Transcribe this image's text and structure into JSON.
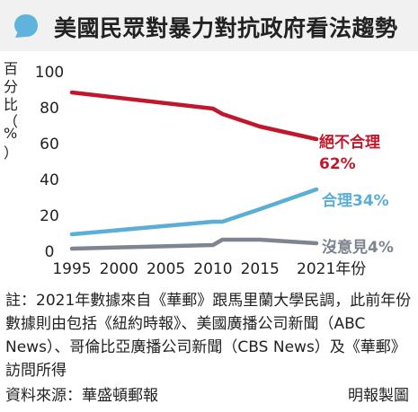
{
  "title": "美國民眾對暴力對抗政府看法趨勢",
  "chart_data": {
    "type": "line",
    "title": "美國民眾對暴力對抗政府看法趨勢",
    "ylabel": "百分比（%）",
    "xlabel": "年份",
    "ylim": [
      0,
      100
    ],
    "xlim": [
      1995,
      2021
    ],
    "x_ticks": [
      "1995",
      "2000",
      "2005",
      "2010",
      "2015",
      "2021年份"
    ],
    "y_ticks": [
      "0",
      "20",
      "40",
      "60",
      "80",
      "100"
    ],
    "grid": false,
    "series": [
      {
        "name": "絕不合理",
        "color": "#c0172d",
        "end_label": "62%",
        "points": [
          [
            1995,
            88
          ],
          [
            2010,
            79
          ],
          [
            2011,
            76
          ],
          [
            2015,
            69
          ],
          [
            2021,
            62
          ]
        ]
      },
      {
        "name": "合理",
        "color": "#5baed6",
        "end_label": "34%",
        "points": [
          [
            1995,
            9
          ],
          [
            2010,
            16
          ],
          [
            2011,
            16
          ],
          [
            2015,
            23
          ],
          [
            2021,
            34
          ]
        ]
      },
      {
        "name": "沒意見",
        "color": "#7d8590",
        "end_label": "4%",
        "points": [
          [
            1995,
            1
          ],
          [
            2010,
            3
          ],
          [
            2011,
            6
          ],
          [
            2015,
            6
          ],
          [
            2021,
            4
          ]
        ]
      }
    ]
  },
  "labels": {
    "s0_name": "絕不合理",
    "s0_value": "62%",
    "s1": "合理34%",
    "s2": "沒意見4%"
  },
  "ylabel_chars": [
    "百",
    "分",
    "比",
    "（",
    "%",
    "）"
  ],
  "note": "註：2021年數據來自《華郵》跟馬里蘭大學民調，此前年份數據則由包括《紐約時報》、美國廣播公司新聞（ABC News）、哥倫比亞廣播公司新聞（CBS News）及《華郵》訪問所得",
  "source": "資料來源：華盛頓郵報",
  "credit": "明報製圖"
}
